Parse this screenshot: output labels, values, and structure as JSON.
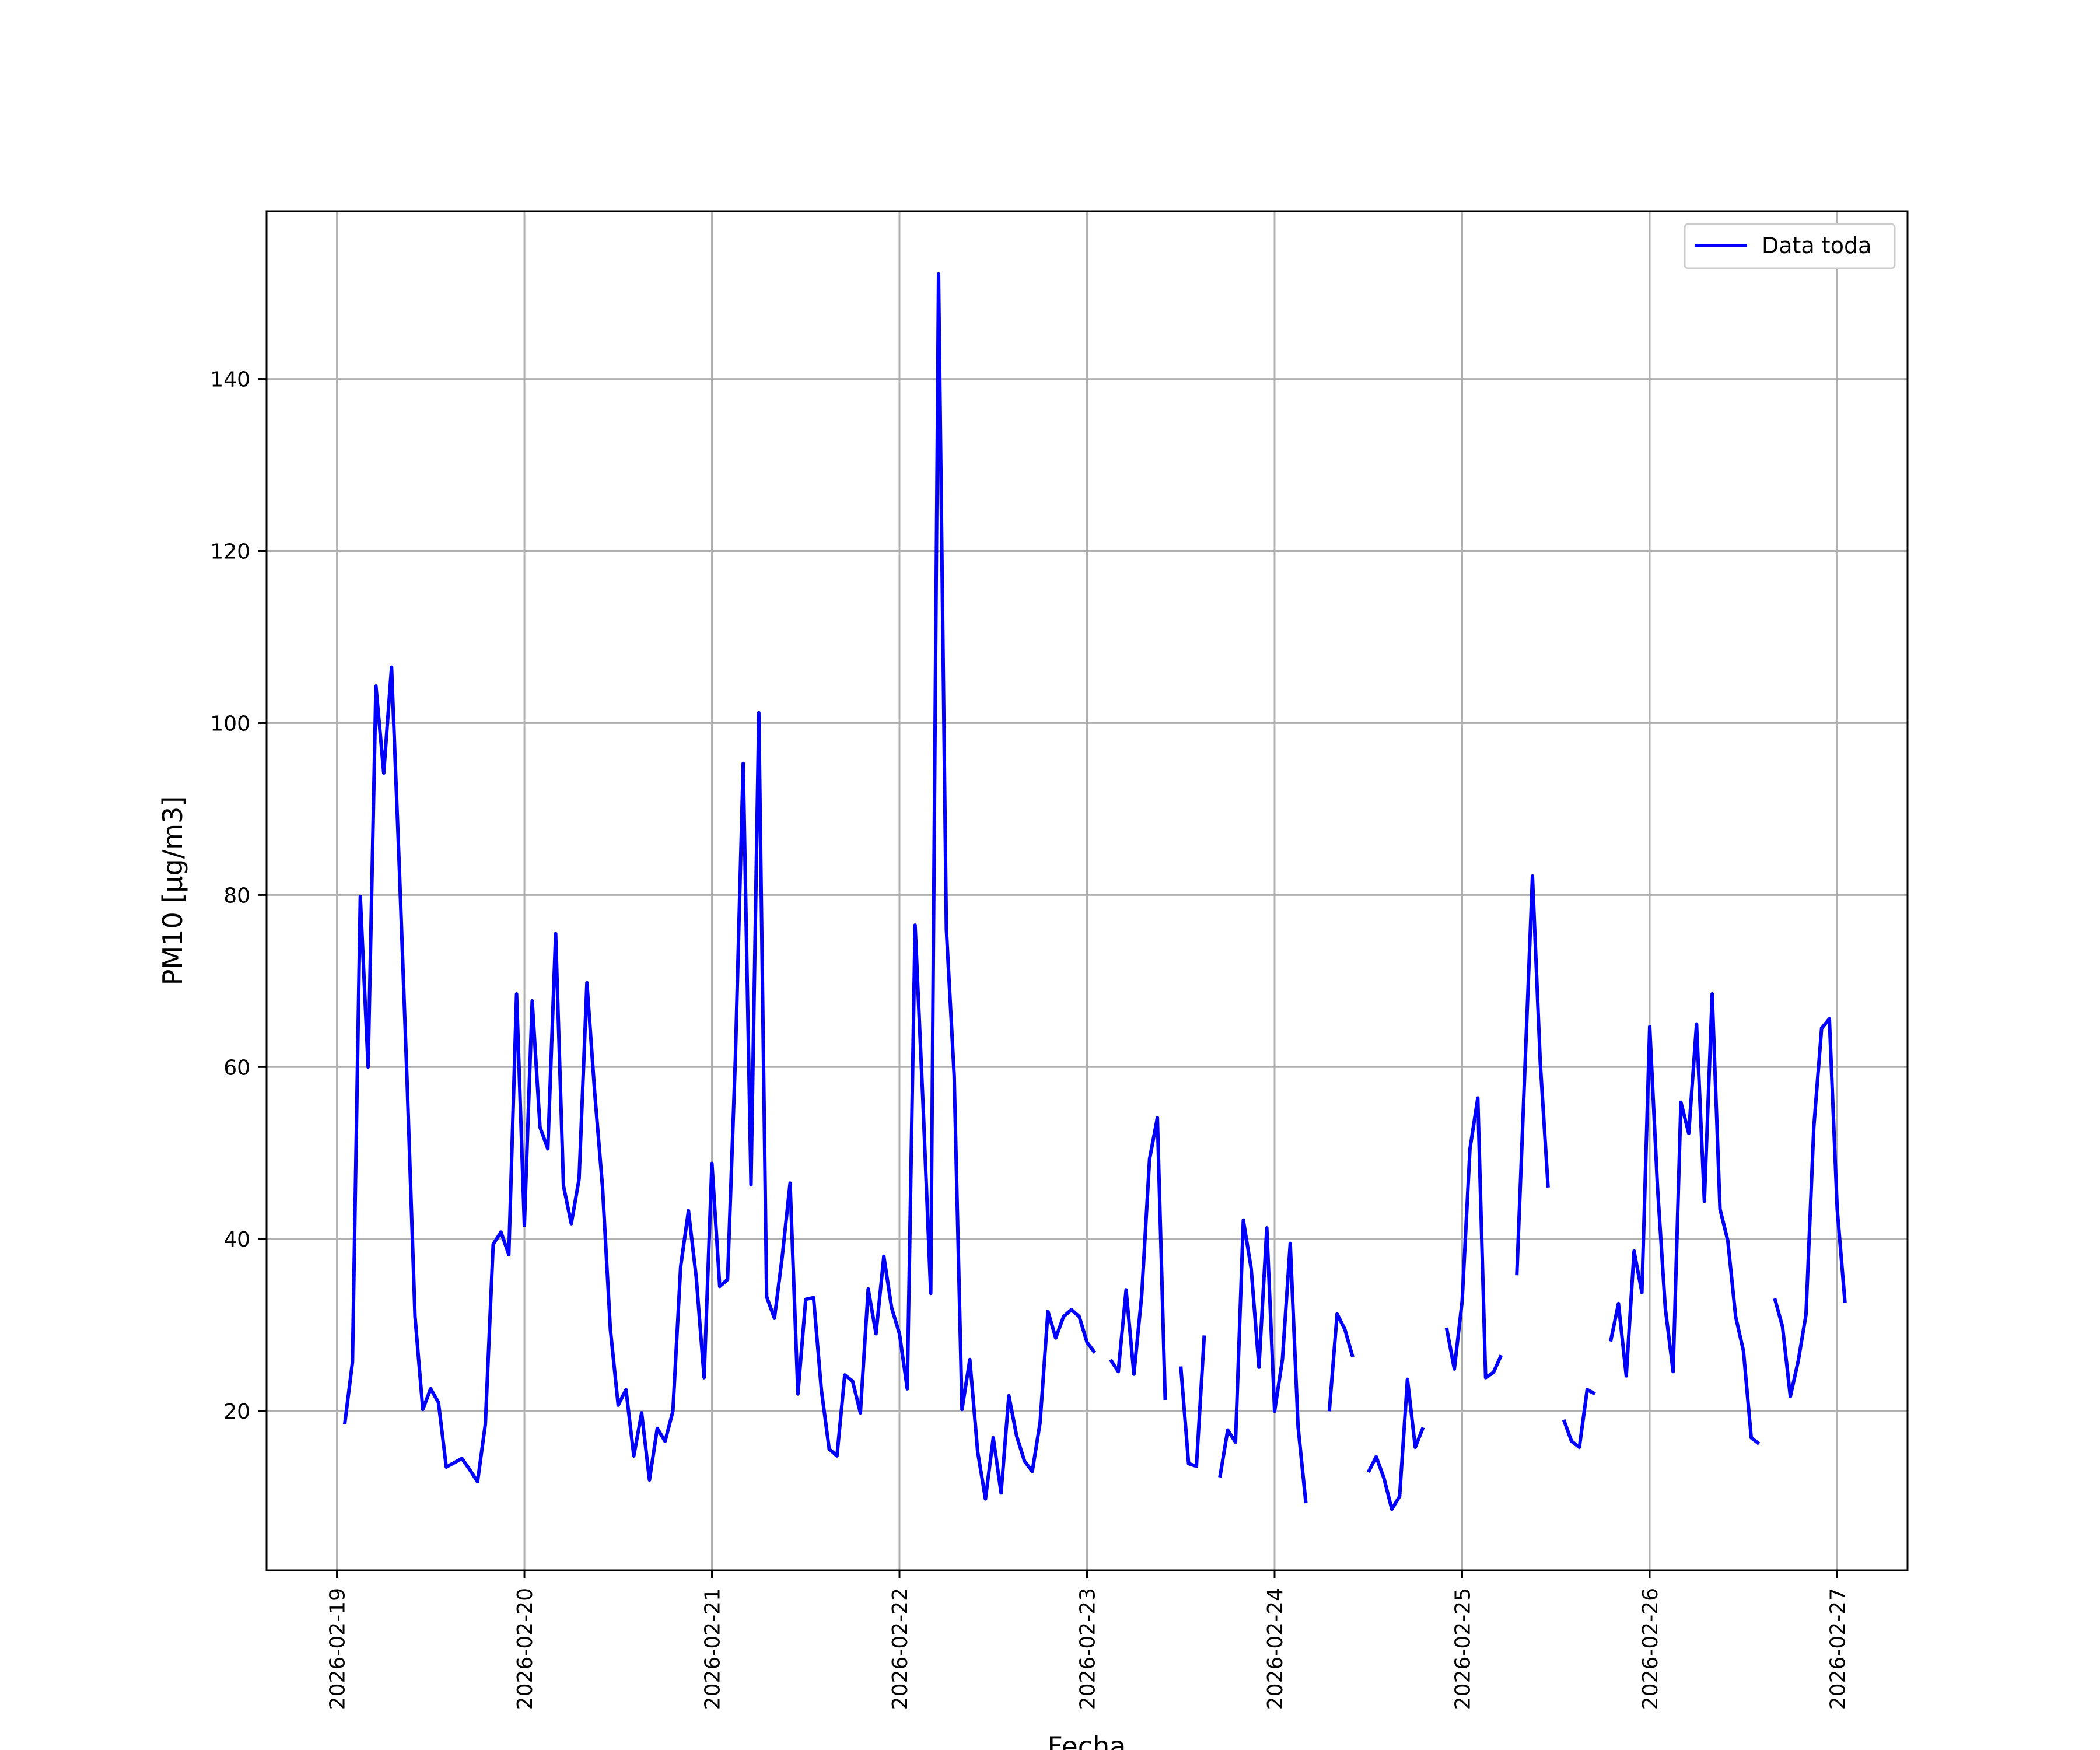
{
  "chart_data": {
    "type": "line",
    "title": "",
    "xlabel": "Fecha",
    "ylabel": "PM10 [μg/m3]",
    "x_ticks": [
      "2026-02-19",
      "2026-02-20",
      "2026-02-21",
      "2026-02-22",
      "2026-02-23",
      "2026-02-24",
      "2026-02-25",
      "2026-02-26",
      "2026-02-27"
    ],
    "y_ticks": [
      20,
      40,
      60,
      80,
      100,
      120,
      140
    ],
    "xlim": [
      "2026-02-18 15:00",
      "2026-02-27 09:00"
    ],
    "ylim": [
      1.5,
      159.5
    ],
    "grid": true,
    "legend": {
      "position": "top-right"
    },
    "series": [
      {
        "name": "Data toda",
        "color": "#0000ff",
        "points": [
          [
            "2026-02-19 01:00",
            18.5
          ],
          [
            "2026-02-19 02:00",
            25.7
          ],
          [
            "2026-02-19 03:00",
            79.8
          ],
          [
            "2026-02-19 04:00",
            60.0
          ],
          [
            "2026-02-19 05:00",
            104.3
          ],
          [
            "2026-02-19 06:00",
            94.2
          ],
          [
            "2026-02-19 07:00",
            106.5
          ],
          [
            "2026-02-19 08:00",
            83.0
          ],
          [
            "2026-02-19 09:00",
            58.0
          ],
          [
            "2026-02-19 10:00",
            31.0
          ],
          [
            "2026-02-19 11:00",
            20.2
          ],
          [
            "2026-02-19 12:00",
            22.6
          ],
          [
            "2026-02-19 13:00",
            21.0
          ],
          [
            "2026-02-19 14:00",
            13.5
          ],
          [
            "2026-02-19 15:00",
            14.0
          ],
          [
            "2026-02-19 16:00",
            14.5
          ],
          [
            "2026-02-19 17:00",
            13.2
          ],
          [
            "2026-02-19 18:00",
            11.8
          ],
          [
            "2026-02-19 19:00",
            18.5
          ],
          [
            "2026-02-19 20:00",
            39.4
          ],
          [
            "2026-02-19 21:00",
            40.8
          ],
          [
            "2026-02-19 22:00",
            38.2
          ],
          [
            "2026-02-19 23:00",
            68.5
          ],
          [
            "2026-02-20 00:00",
            41.6
          ],
          [
            "2026-02-20 01:00",
            67.7
          ],
          [
            "2026-02-20 02:00",
            53.0
          ],
          [
            "2026-02-20 03:00",
            50.5
          ],
          [
            "2026-02-20 04:00",
            75.5
          ],
          [
            "2026-02-20 05:00",
            46.2
          ],
          [
            "2026-02-20 06:00",
            41.8
          ],
          [
            "2026-02-20 07:00",
            47.0
          ],
          [
            "2026-02-20 08:00",
            69.8
          ],
          [
            "2026-02-20 09:00",
            57.0
          ],
          [
            "2026-02-20 10:00",
            46.0
          ],
          [
            "2026-02-20 11:00",
            29.5
          ],
          [
            "2026-02-20 12:00",
            20.7
          ],
          [
            "2026-02-20 13:00",
            22.5
          ],
          [
            "2026-02-20 14:00",
            14.8
          ],
          [
            "2026-02-20 15:00",
            19.8
          ],
          [
            "2026-02-20 16:00",
            12.0
          ],
          [
            "2026-02-20 17:00",
            18.0
          ],
          [
            "2026-02-20 18:00",
            16.5
          ],
          [
            "2026-02-20 19:00",
            20.0
          ],
          [
            "2026-02-20 20:00",
            36.8
          ],
          [
            "2026-02-20 21:00",
            43.3
          ],
          [
            "2026-02-20 22:00",
            35.5
          ],
          [
            "2026-02-20 23:00",
            23.9
          ],
          [
            "2026-02-21 00:00",
            48.8
          ],
          [
            "2026-02-21 01:00",
            34.5
          ],
          [
            "2026-02-21 02:00",
            35.3
          ],
          [
            "2026-02-21 03:00",
            61.0
          ],
          [
            "2026-02-21 04:00",
            95.3
          ],
          [
            "2026-02-21 05:00",
            46.3
          ],
          [
            "2026-02-21 06:00",
            101.2
          ],
          [
            "2026-02-21 07:00",
            33.3
          ],
          [
            "2026-02-21 08:00",
            30.8
          ],
          [
            "2026-02-21 09:00",
            38.0
          ],
          [
            "2026-02-21 10:00",
            46.5
          ],
          [
            "2026-02-21 11:00",
            22.0
          ],
          [
            "2026-02-21 12:00",
            33.0
          ],
          [
            "2026-02-21 13:00",
            33.2
          ],
          [
            "2026-02-21 14:00",
            22.5
          ],
          [
            "2026-02-21 15:00",
            15.6
          ],
          [
            "2026-02-21 16:00",
            14.8
          ],
          [
            "2026-02-21 17:00",
            24.2
          ],
          [
            "2026-02-21 18:00",
            23.5
          ],
          [
            "2026-02-21 19:00",
            19.8
          ],
          [
            "2026-02-21 20:00",
            34.2
          ],
          [
            "2026-02-21 21:00",
            29.0
          ],
          [
            "2026-02-21 22:00",
            38.0
          ],
          [
            "2026-02-21 23:00",
            32.0
          ],
          [
            "2026-02-22 00:00",
            29.0
          ],
          [
            "2026-02-22 01:00",
            22.6
          ],
          [
            "2026-02-22 02:00",
            76.5
          ],
          [
            "2026-02-22 03:00",
            56.0
          ],
          [
            "2026-02-22 04:00",
            33.7
          ],
          [
            "2026-02-22 05:00",
            152.2
          ],
          [
            "2026-02-22 06:00",
            76.0
          ],
          [
            "2026-02-22 07:00",
            59.0
          ],
          [
            "2026-02-22 08:00",
            20.2
          ],
          [
            "2026-02-22 09:00",
            26.0
          ],
          [
            "2026-02-22 10:00",
            15.3
          ],
          [
            "2026-02-22 11:00",
            9.8
          ],
          [
            "2026-02-22 12:00",
            16.9
          ],
          [
            "2026-02-22 13:00",
            10.5
          ],
          [
            "2026-02-22 14:00",
            21.8
          ],
          [
            "2026-02-22 15:00",
            17.1
          ],
          [
            "2026-02-22 16:00",
            14.2
          ],
          [
            "2026-02-22 17:00",
            13.0
          ],
          [
            "2026-02-22 18:00",
            18.7
          ],
          [
            "2026-02-22 19:00",
            31.6
          ],
          [
            "2026-02-22 20:00",
            28.5
          ],
          [
            "2026-02-22 21:00",
            31.0
          ],
          [
            "2026-02-22 22:00",
            31.8
          ],
          [
            "2026-02-22 23:00",
            31.0
          ],
          [
            "2026-02-23 00:00",
            28.0
          ],
          [
            "2026-02-23 01:00",
            26.8
          ],
          [
            "2026-02-23 02:00",
            null
          ],
          [
            "2026-02-23 03:00",
            26.0
          ],
          [
            "2026-02-23 04:00",
            24.6
          ],
          [
            "2026-02-23 05:00",
            34.1
          ],
          [
            "2026-02-23 06:00",
            24.3
          ],
          [
            "2026-02-23 07:00",
            33.5
          ],
          [
            "2026-02-23 08:00",
            49.3
          ],
          [
            "2026-02-23 09:00",
            54.1
          ],
          [
            "2026-02-23 10:00",
            21.3
          ],
          [
            "2026-02-23 11:00",
            null
          ],
          [
            "2026-02-23 12:00",
            25.2
          ],
          [
            "2026-02-23 13:00",
            13.9
          ],
          [
            "2026-02-23 14:00",
            13.6
          ],
          [
            "2026-02-23 15:00",
            28.8
          ],
          [
            "2026-02-23 16:00",
            null
          ],
          [
            "2026-02-23 17:00",
            12.3
          ],
          [
            "2026-02-23 18:00",
            17.8
          ],
          [
            "2026-02-23 19:00",
            16.4
          ],
          [
            "2026-02-23 20:00",
            42.2
          ],
          [
            "2026-02-23 21:00",
            36.6
          ],
          [
            "2026-02-23 22:00",
            25.1
          ],
          [
            "2026-02-23 23:00",
            41.3
          ],
          [
            "2026-02-24 00:00",
            20.0
          ],
          [
            "2026-02-24 01:00",
            26.0
          ],
          [
            "2026-02-24 02:00",
            39.5
          ],
          [
            "2026-02-24 03:00",
            18.2
          ],
          [
            "2026-02-24 04:00",
            9.3
          ],
          [
            "2026-02-24 05:00",
            null
          ],
          [
            "2026-02-24 06:00",
            null
          ],
          [
            "2026-02-24 07:00",
            20.0
          ],
          [
            "2026-02-24 08:00",
            31.3
          ],
          [
            "2026-02-24 09:00",
            29.5
          ],
          [
            "2026-02-24 10:00",
            26.3
          ],
          [
            "2026-02-24 11:00",
            null
          ],
          [
            "2026-02-24 12:00",
            12.9
          ],
          [
            "2026-02-24 13:00",
            14.7
          ],
          [
            "2026-02-24 14:00",
            12.2
          ],
          [
            "2026-02-24 15:00",
            8.6
          ],
          [
            "2026-02-24 16:00",
            10.1
          ],
          [
            "2026-02-24 17:00",
            23.7
          ],
          [
            "2026-02-24 18:00",
            15.8
          ],
          [
            "2026-02-24 19:00",
            18.1
          ],
          [
            "2026-02-24 20:00",
            null
          ],
          [
            "2026-02-24 21:00",
            null
          ],
          [
            "2026-02-24 22:00",
            29.7
          ],
          [
            "2026-02-24 23:00",
            24.9
          ],
          [
            "2026-02-25 00:00",
            32.8
          ],
          [
            "2026-02-25 01:00",
            50.5
          ],
          [
            "2026-02-25 02:00",
            56.4
          ],
          [
            "2026-02-25 03:00",
            23.9
          ],
          [
            "2026-02-25 04:00",
            24.5
          ],
          [
            "2026-02-25 05:00",
            26.5
          ],
          [
            "2026-02-25 06:00",
            null
          ],
          [
            "2026-02-25 07:00",
            35.8
          ],
          [
            "2026-02-25 08:00",
            59.0
          ],
          [
            "2026-02-25 09:00",
            82.2
          ],
          [
            "2026-02-25 10:00",
            60.5
          ],
          [
            "2026-02-25 11:00",
            46.0
          ],
          [
            "2026-02-25 12:00",
            null
          ],
          [
            "2026-02-25 13:00",
            19.0
          ],
          [
            "2026-02-25 14:00",
            16.5
          ],
          [
            "2026-02-25 15:00",
            15.8
          ],
          [
            "2026-02-25 16:00",
            22.5
          ],
          [
            "2026-02-25 17:00",
            22.0
          ],
          [
            "2026-02-25 18:00",
            null
          ],
          [
            "2026-02-25 19:00",
            28.1
          ],
          [
            "2026-02-25 20:00",
            32.5
          ],
          [
            "2026-02-25 21:00",
            24.1
          ],
          [
            "2026-02-25 22:00",
            38.6
          ],
          [
            "2026-02-25 23:00",
            33.8
          ],
          [
            "2026-02-26 00:00",
            64.7
          ],
          [
            "2026-02-26 01:00",
            46.0
          ],
          [
            "2026-02-26 02:00",
            32.0
          ],
          [
            "2026-02-26 03:00",
            24.6
          ],
          [
            "2026-02-26 04:00",
            55.9
          ],
          [
            "2026-02-26 05:00",
            52.3
          ],
          [
            "2026-02-26 06:00",
            65.0
          ],
          [
            "2026-02-26 07:00",
            44.4
          ],
          [
            "2026-02-26 08:00",
            68.5
          ],
          [
            "2026-02-26 09:00",
            43.5
          ],
          [
            "2026-02-26 10:00",
            39.8
          ],
          [
            "2026-02-26 11:00",
            31.0
          ],
          [
            "2026-02-26 12:00",
            27.0
          ],
          [
            "2026-02-26 13:00",
            16.9
          ],
          [
            "2026-02-26 14:00",
            16.2
          ],
          [
            "2026-02-26 15:00",
            null
          ],
          [
            "2026-02-26 16:00",
            33.1
          ],
          [
            "2026-02-26 17:00",
            29.8
          ],
          [
            "2026-02-26 18:00",
            21.7
          ],
          [
            "2026-02-26 19:00",
            25.8
          ],
          [
            "2026-02-26 20:00",
            31.2
          ],
          [
            "2026-02-26 21:00",
            53.0
          ],
          [
            "2026-02-26 22:00",
            64.5
          ],
          [
            "2026-02-26 23:00",
            65.6
          ],
          [
            "2026-02-27 00:00",
            43.5
          ],
          [
            "2026-02-27 01:00",
            32.6
          ]
        ]
      }
    ]
  }
}
